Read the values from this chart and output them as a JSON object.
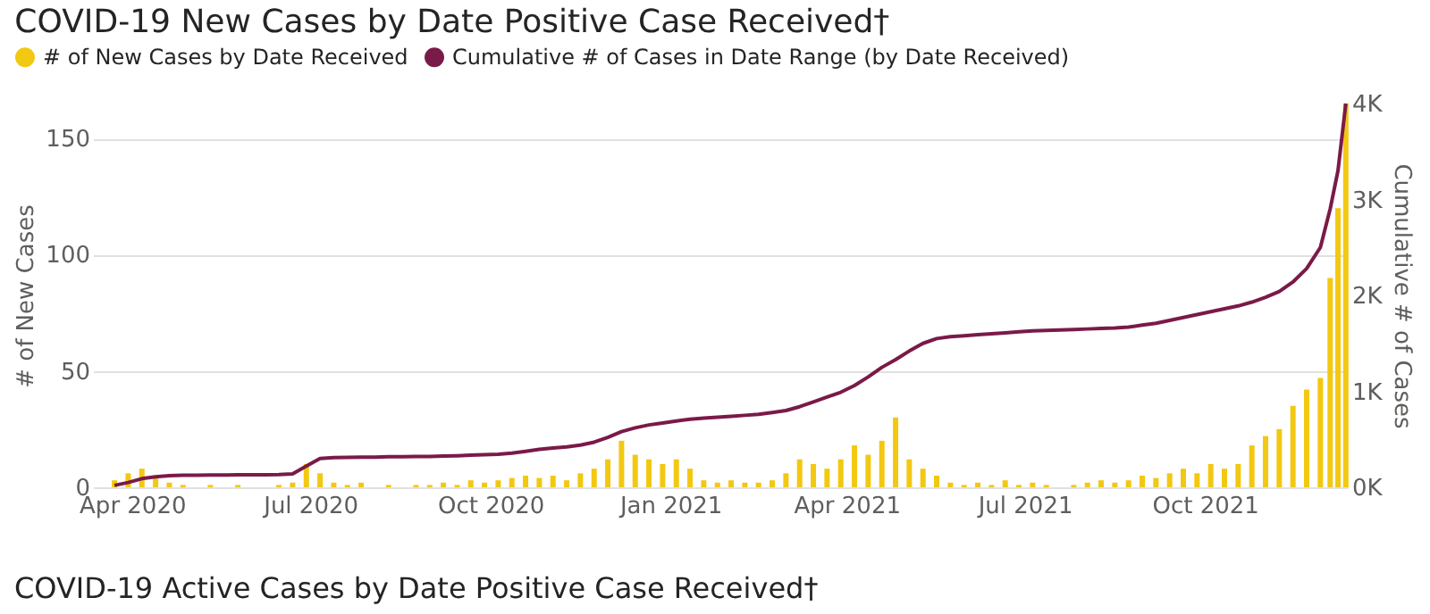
{
  "chart_data": {
    "type": "bar",
    "title": "COVID-19 New Cases by Date Positive Case Received†",
    "ylabel": "# of New Cases",
    "y2label": "Cumulative # of Cases",
    "annotations": [
      "COVID-19 Active Cases by Date Positive Case Received†"
    ],
    "x": [
      "2020-03-23",
      "2020-03-30",
      "2020-04-06",
      "2020-04-13",
      "2020-04-20",
      "2020-04-27",
      "2020-05-04",
      "2020-05-11",
      "2020-05-18",
      "2020-05-25",
      "2020-06-01",
      "2020-06-08",
      "2020-06-15",
      "2020-06-22",
      "2020-06-29",
      "2020-07-06",
      "2020-07-13",
      "2020-07-20",
      "2020-07-27",
      "2020-08-03",
      "2020-08-10",
      "2020-08-17",
      "2020-08-24",
      "2020-08-31",
      "2020-09-07",
      "2020-09-14",
      "2020-09-21",
      "2020-09-28",
      "2020-10-05",
      "2020-10-12",
      "2020-10-19",
      "2020-10-26",
      "2020-11-02",
      "2020-11-09",
      "2020-11-16",
      "2020-11-23",
      "2020-11-30",
      "2020-12-07",
      "2020-12-14",
      "2020-12-21",
      "2020-12-28",
      "2021-01-04",
      "2021-01-11",
      "2021-01-18",
      "2021-01-25",
      "2021-02-01",
      "2021-02-08",
      "2021-02-15",
      "2021-02-22",
      "2021-03-01",
      "2021-03-08",
      "2021-03-15",
      "2021-03-22",
      "2021-03-29",
      "2021-04-05",
      "2021-04-12",
      "2021-04-19",
      "2021-04-26",
      "2021-05-03",
      "2021-05-10",
      "2021-05-17",
      "2021-05-24",
      "2021-05-31",
      "2021-06-07",
      "2021-06-14",
      "2021-06-21",
      "2021-06-28",
      "2021-07-05",
      "2021-07-12",
      "2021-07-19",
      "2021-07-26",
      "2021-08-02",
      "2021-08-09",
      "2021-08-16",
      "2021-08-23",
      "2021-08-30",
      "2021-09-06",
      "2021-09-13",
      "2021-09-20",
      "2021-09-27",
      "2021-10-04",
      "2021-10-11",
      "2021-10-18",
      "2021-10-25",
      "2021-11-01",
      "2021-11-08",
      "2021-11-15",
      "2021-11-22",
      "2021-11-29",
      "2021-12-04",
      "2021-12-08",
      "2021-12-12"
    ],
    "series": [
      {
        "name": "# of New Cases by Date Received",
        "color": "#f2c811",
        "values": [
          3,
          6,
          8,
          4,
          2,
          1,
          0,
          1,
          0,
          1,
          0,
          0,
          1,
          2,
          10,
          6,
          2,
          1,
          2,
          0,
          1,
          0,
          1,
          1,
          2,
          1,
          3,
          2,
          3,
          4,
          5,
          4,
          5,
          3,
          6,
          8,
          12,
          20,
          14,
          12,
          10,
          12,
          8,
          3,
          2,
          3,
          2,
          2,
          3,
          6,
          12,
          10,
          8,
          12,
          18,
          14,
          20,
          30,
          12,
          8,
          5,
          2,
          1,
          2,
          1,
          3,
          1,
          2,
          1,
          0,
          1,
          2,
          3,
          2,
          3,
          5,
          4,
          6,
          8,
          6,
          10,
          8,
          10,
          18,
          22,
          25,
          35,
          42,
          47,
          90,
          120,
          165
        ]
      },
      {
        "name": "Cumulative # of Cases in Date Range (by Date Received)",
        "type": "line",
        "axis": "y2",
        "color": "#7a1a48",
        "values": [
          20,
          50,
          90,
          110,
          120,
          125,
          125,
          128,
          128,
          130,
          130,
          130,
          132,
          140,
          220,
          300,
          310,
          312,
          315,
          315,
          318,
          318,
          320,
          322,
          325,
          328,
          335,
          340,
          345,
          355,
          375,
          395,
          410,
          420,
          440,
          470,
          520,
          580,
          620,
          650,
          670,
          690,
          710,
          720,
          730,
          740,
          750,
          760,
          780,
          800,
          840,
          890,
          940,
          990,
          1060,
          1150,
          1250,
          1330,
          1420,
          1500,
          1550,
          1570,
          1580,
          1590,
          1600,
          1610,
          1620,
          1630,
          1635,
          1640,
          1645,
          1650,
          1655,
          1660,
          1670,
          1690,
          1710,
          1740,
          1770,
          1800,
          1830,
          1860,
          1890,
          1930,
          1980,
          2040,
          2140,
          2280,
          2500,
          2900,
          3300,
          4000
        ]
      }
    ],
    "xlim": [
      "2020-03-12",
      "2021-12-13"
    ],
    "xticks": [
      {
        "value": "2020-04-01",
        "label": "Apr 2020"
      },
      {
        "value": "2020-07-01",
        "label": "Jul 2020"
      },
      {
        "value": "2020-10-01",
        "label": "Oct 2020"
      },
      {
        "value": "2021-01-01",
        "label": "Jan 2021"
      },
      {
        "value": "2021-04-01",
        "label": "Apr 2021"
      },
      {
        "value": "2021-07-01",
        "label": "Jul 2021"
      },
      {
        "value": "2021-10-01",
        "label": "Oct 2021"
      }
    ],
    "ylim": [
      0,
      165
    ],
    "yticks": [
      0,
      50,
      100,
      150
    ],
    "y2lim": [
      0,
      4000
    ],
    "y2ticks": [
      {
        "value": 0,
        "label": "0K"
      },
      {
        "value": 1000,
        "label": "1K"
      },
      {
        "value": 2000,
        "label": "2K"
      },
      {
        "value": 3000,
        "label": "3K"
      },
      {
        "value": 4000,
        "label": "4K"
      }
    ],
    "grid": "y",
    "legend": "top left"
  }
}
